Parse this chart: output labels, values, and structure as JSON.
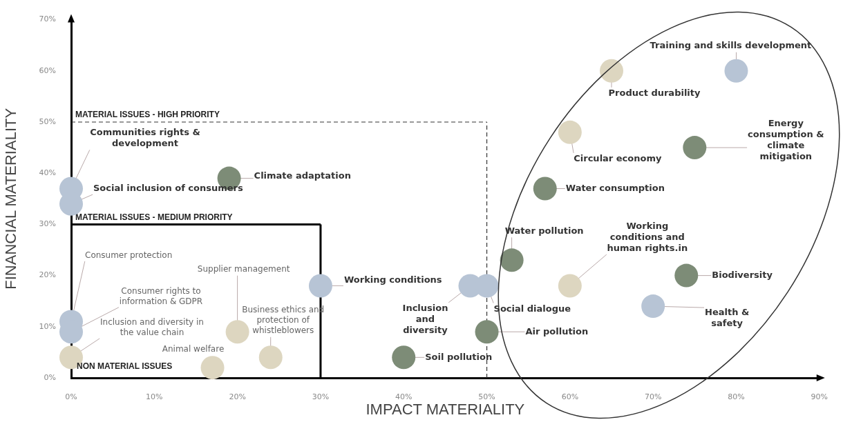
{
  "chart_data": {
    "type": "scatter",
    "xlabel": "IMPACT MATERIALITY",
    "ylabel": "FINANCIAL MATERIALITY",
    "x": [
      0,
      0,
      19,
      0,
      0,
      0,
      17,
      20,
      24,
      30,
      48,
      50,
      50,
      40,
      53,
      60,
      74,
      70,
      57,
      60,
      75,
      65,
      80
    ],
    "values": [
      37,
      34,
      39,
      11,
      9,
      4,
      2,
      9,
      4,
      18,
      18,
      18,
      9,
      4,
      23,
      18,
      20,
      14,
      37,
      48,
      45,
      60,
      60
    ],
    "colors": [
      "#b7c4d5",
      "#b7c4d5",
      "#7d8c77",
      "#b7c4d5",
      "#b7c4d5",
      "#ddd6c0",
      "#ddd6c0",
      "#ddd6c0",
      "#ddd6c0",
      "#b7c4d5",
      "#b7c4d5",
      "#b7c4d5",
      "#7d8c77",
      "#7d8c77",
      "#7d8c77",
      "#ddd6c0",
      "#7d8c77",
      "#b7c4d5",
      "#7d8c77",
      "#ddd6c0",
      "#7d8c77",
      "#ddd6c0",
      "#b7c4d5"
    ],
    "xlim": [
      0,
      90
    ],
    "ylim": [
      0,
      70
    ],
    "xticks": [
      {
        "value": 0,
        "label": "0%"
      },
      {
        "value": 10,
        "label": "10%"
      },
      {
        "value": 20,
        "label": "20%"
      },
      {
        "value": 30,
        "label": "30%"
      },
      {
        "value": 40,
        "label": "40%"
      },
      {
        "value": 50,
        "label": "50%"
      },
      {
        "value": 60,
        "label": "60%"
      },
      {
        "value": 70,
        "label": "70%"
      },
      {
        "value": 80,
        "label": "80%"
      },
      {
        "value": 90,
        "label": "90%"
      }
    ],
    "yticks": [
      {
        "value": 0,
        "label": "0%"
      },
      {
        "value": 10,
        "label": "10%"
      },
      {
        "value": 20,
        "label": "20%"
      },
      {
        "value": 30,
        "label": "30%"
      },
      {
        "value": 40,
        "label": "40%"
      },
      {
        "value": 50,
        "label": "50%"
      },
      {
        "value": 60,
        "label": "60%"
      },
      {
        "value": 70,
        "label": "70%"
      }
    ],
    "grid": false,
    "legend": false,
    "marker": "circle",
    "ref_lines": [
      {
        "axis": "y",
        "value": 50,
        "label": "MATERIAL ISSUES - HIGH PRIORITY",
        "line_style": "dashed",
        "color": "#333333"
      },
      {
        "axis": "x",
        "value": 50,
        "line_style": "dashed",
        "color": "#333333"
      },
      {
        "axis": "y",
        "value": 30,
        "label": "MATERIAL ISSUES - MEDIUM PRIORITY",
        "line_style": "solid",
        "color": "#000000"
      },
      {
        "axis": "x",
        "value": 30,
        "line_style": "solid",
        "color": "#000000"
      }
    ],
    "annotations": [
      {
        "text": "Communities rights & development",
        "x": 0,
        "y": 37
      },
      {
        "text": "Social inclusion of consumers",
        "x": 0,
        "y": 34
      },
      {
        "text": "Climate adaptation",
        "x": 19,
        "y": 39
      },
      {
        "text": "Consumer protection",
        "x": 0,
        "y": 11
      },
      {
        "text": "Consumer rights to information & GDPR",
        "x": 0,
        "y": 9
      },
      {
        "text": "Inclusion and diversity in the value chain",
        "x": 0,
        "y": 4
      },
      {
        "text": "Animal welfare",
        "x": 17,
        "y": 2
      },
      {
        "text": "Supplier management",
        "x": 20,
        "y": 9
      },
      {
        "text": "Business ethics and protection of whistleblowers",
        "x": 24,
        "y": 4
      },
      {
        "text": "Working conditions",
        "x": 30,
        "y": 18
      },
      {
        "text": "Inclusion and diversity",
        "x": 48,
        "y": 18
      },
      {
        "text": "Social dialogue",
        "x": 50,
        "y": 18
      },
      {
        "text": "Air pollution",
        "x": 50,
        "y": 9
      },
      {
        "text": "Soil pollution",
        "x": 40,
        "y": 4
      },
      {
        "text": "Water pollution",
        "x": 53,
        "y": 23
      },
      {
        "text": "Working conditions and human rights.in",
        "x": 60,
        "y": 18
      },
      {
        "text": "Biodiversity",
        "x": 74,
        "y": 20
      },
      {
        "text": "Health & safety",
        "x": 70,
        "y": 14
      },
      {
        "text": "Water consumption",
        "x": 57,
        "y": 37
      },
      {
        "text": "Circular economy",
        "x": 60,
        "y": 48
      },
      {
        "text": "Energy consumption & climate mitigation",
        "x": 75,
        "y": 45
      },
      {
        "text": "Product durability",
        "x": 65,
        "y": 60
      },
      {
        "text": "Training and skills development",
        "x": 80,
        "y": 60
      },
      "NON MATERIAL ISSUES"
    ]
  }
}
